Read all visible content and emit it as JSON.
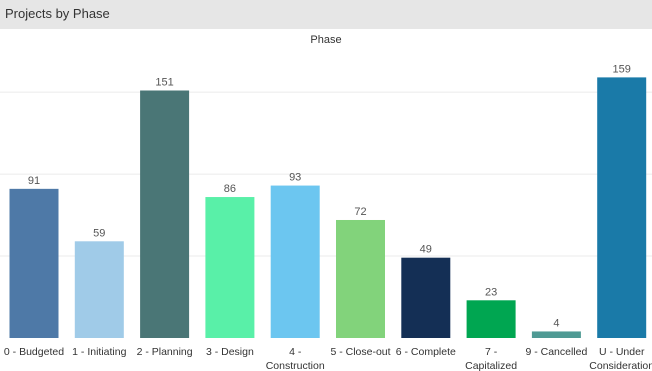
{
  "header": {
    "title": "Projects by Phase"
  },
  "chart_data": {
    "type": "bar",
    "title": "Projects by Phase",
    "axis_title": "Phase",
    "categories": [
      [
        "0 - Budgeted"
      ],
      [
        "1 - Initiating"
      ],
      [
        "2 - Planning"
      ],
      [
        "3 - Design"
      ],
      [
        "4 -",
        "Construction"
      ],
      [
        "5 - Close-out"
      ],
      [
        "6 - Complete"
      ],
      [
        "7 -",
        "Capitalized"
      ],
      [
        "9 - Cancelled"
      ],
      [
        "U - Under",
        "Consideration"
      ]
    ],
    "values": [
      91,
      59,
      151,
      86,
      93,
      72,
      49,
      23,
      4,
      159
    ],
    "colors": [
      "#4e79a7",
      "#a0cbe8",
      "#4a7676",
      "#59f0a8",
      "#6cc6f0",
      "#82d37b",
      "#142f55",
      "#00a651",
      "#4f9a94",
      "#1a7aa8"
    ],
    "gridlines": [
      50,
      100,
      150
    ],
    "ylim": [
      0,
      165
    ],
    "grid": true
  }
}
